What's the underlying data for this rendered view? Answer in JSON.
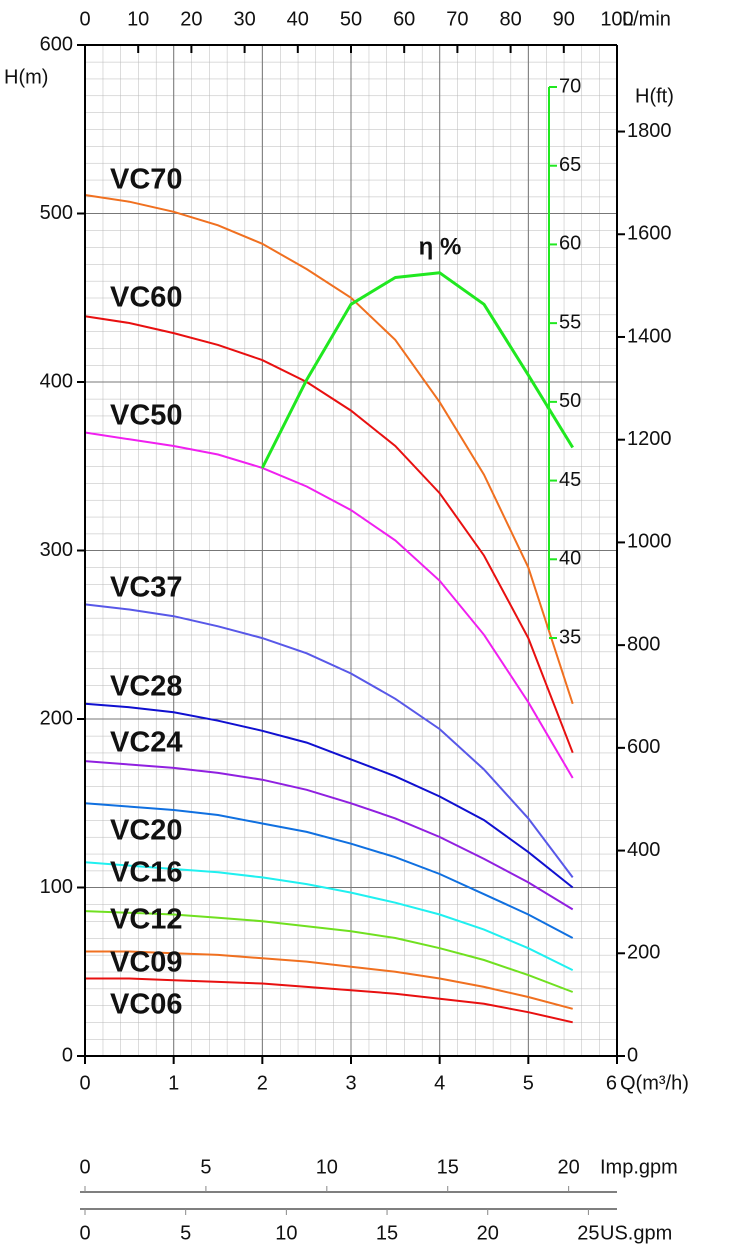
{
  "chart_data": {
    "type": "line",
    "x": [
      0,
      0.5,
      1,
      1.5,
      2,
      2.5,
      3,
      3.5,
      4,
      4.5,
      5,
      5.5
    ],
    "series": [
      {
        "name": "VC70",
        "color": "#f07020",
        "values": [
          511,
          507,
          501,
          493,
          482,
          467,
          450,
          425,
          388,
          345,
          290,
          209
        ]
      },
      {
        "name": "VC60",
        "color": "#e81010",
        "values": [
          439,
          435,
          429,
          422,
          413,
          400,
          383,
          362,
          334,
          297,
          248,
          180
        ]
      },
      {
        "name": "VC50",
        "color": "#f020f0",
        "values": [
          370,
          366,
          362,
          357,
          349,
          338,
          324,
          306,
          282,
          250,
          210,
          165
        ]
      },
      {
        "name": "VC37",
        "color": "#5858e8",
        "values": [
          268,
          265,
          261,
          255,
          248,
          239,
          227,
          212,
          194,
          170,
          141,
          106
        ]
      },
      {
        "name": "VC28",
        "color": "#1010d0",
        "values": [
          209,
          207,
          204,
          199,
          193,
          186,
          176,
          166,
          154,
          140,
          121,
          100
        ]
      },
      {
        "name": "VC24",
        "color": "#9020e0",
        "values": [
          175,
          173,
          171,
          168,
          164,
          158,
          150,
          141,
          130,
          117,
          103,
          87
        ]
      },
      {
        "name": "VC20",
        "color": "#1070e0",
        "values": [
          150,
          148,
          146,
          143,
          138,
          133,
          126,
          118,
          108,
          96,
          84,
          70
        ]
      },
      {
        "name": "VC16",
        "color": "#20f0f0",
        "values": [
          115,
          113,
          111,
          109,
          106,
          102,
          97,
          91,
          84,
          75,
          64,
          51
        ]
      },
      {
        "name": "VC12",
        "color": "#70e020",
        "values": [
          86,
          85,
          84,
          82,
          80,
          77,
          74,
          70,
          64,
          57,
          48,
          38
        ]
      },
      {
        "name": "VC09",
        "color": "#f07020",
        "values": [
          62,
          62,
          61,
          60,
          58,
          56,
          53,
          50,
          46,
          41,
          35,
          28
        ]
      },
      {
        "name": "VC06",
        "color": "#e81010",
        "values": [
          46,
          46,
          45,
          44,
          43,
          41,
          39,
          37,
          34,
          31,
          26,
          20
        ]
      }
    ],
    "efficiency": {
      "name": "η %",
      "color": "#20e820",
      "x": [
        2,
        2.5,
        3,
        3.5,
        4,
        4.5,
        5,
        5.5
      ],
      "values": [
        45.8,
        51.4,
        56.2,
        57.9,
        58.2,
        56.2,
        51.7,
        47.1
      ],
      "lim": [
        35,
        70
      ],
      "ticks": [
        35,
        40,
        45,
        50,
        55,
        60,
        65,
        70
      ]
    },
    "xlim": [
      0,
      6
    ],
    "xticks": [
      0,
      1,
      2,
      3,
      4,
      5,
      6
    ],
    "xlabel": "Q(m³/h)",
    "ylim": [
      0,
      600
    ],
    "yticks": [
      0,
      100,
      200,
      300,
      400,
      500,
      600
    ],
    "ylabel": "H(m)",
    "y2lim": [
      0,
      1968.5
    ],
    "y2ticks": [
      0,
      200,
      400,
      600,
      800,
      1000,
      1200,
      1400,
      1600,
      1800
    ],
    "y2label": "H(ft)",
    "x2lim": [
      0,
      100
    ],
    "x2ticks": [
      0,
      10,
      20,
      30,
      40,
      50,
      60,
      70,
      80,
      90,
      100
    ],
    "x2label": "L/min",
    "imp_gpm": {
      "label": "Imp.gpm",
      "lim": [
        0,
        22.0
      ],
      "ticks": [
        0,
        5,
        10,
        15,
        20
      ]
    },
    "us_gpm": {
      "label": "US.gpm",
      "lim": [
        0,
        26.42
      ],
      "ticks": [
        0,
        5,
        10,
        15,
        20,
        25
      ]
    },
    "grid": true
  }
}
